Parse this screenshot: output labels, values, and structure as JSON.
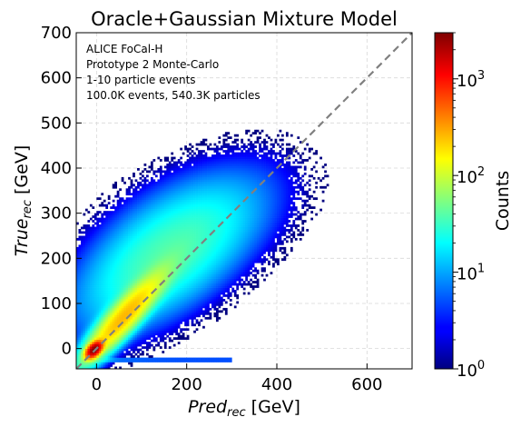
{
  "chart_data": {
    "type": "heatmap",
    "title": "Oracle+Gaussian Mixture Model",
    "xlabel_main": "Pred",
    "xlabel_sub": "rec",
    "xlabel_unit": " [GeV]",
    "ylabel_main": "True",
    "ylabel_sub": "rec",
    "ylabel_unit": " [GeV]",
    "xlim": [
      -45,
      700
    ],
    "ylim": [
      -45,
      700
    ],
    "xticks": [
      0,
      200,
      400,
      600
    ],
    "yticks": [
      0,
      100,
      200,
      300,
      400,
      500,
      600,
      700
    ],
    "grid": true,
    "diagonal": {
      "from": [
        -45,
        -45
      ],
      "to": [
        700,
        700
      ],
      "color": "#808080",
      "style": "dashed"
    },
    "annotation_lines": [
      "ALICE FoCal-H",
      "Prototype 2 Monte-Carlo",
      "1-10 particle events",
      "100.0K events, 540.3K particles"
    ],
    "colorbar": {
      "label": "Counts",
      "scale": "log",
      "min": 1,
      "max": 3000,
      "ticks": [
        {
          "value": 1,
          "base": "10",
          "exp": "0"
        },
        {
          "value": 10,
          "base": "10",
          "exp": "1"
        },
        {
          "value": 100,
          "base": "10",
          "exp": "2"
        },
        {
          "value": 1000,
          "base": "10",
          "exp": "3"
        }
      ],
      "colormap": "jet"
    },
    "density_model": {
      "components": [
        {
          "mx": -5,
          "my": -2,
          "sx": 9,
          "sy": 9,
          "rho": 0.5,
          "peak": 3000
        },
        {
          "mx": 60,
          "my": 70,
          "sx": 50,
          "sy": 55,
          "rho": 0.9,
          "peak": 250
        },
        {
          "mx": 150,
          "my": 200,
          "sx": 110,
          "sy": 90,
          "rho": 0.6,
          "peak": 35
        },
        {
          "mx": 230,
          "my": 290,
          "sx": 120,
          "sy": 80,
          "rho": 0.45,
          "peak": 6
        }
      ],
      "baseline_band": {
        "y": -25,
        "x_from": -25,
        "x_to": 300,
        "level": 5
      }
    }
  }
}
